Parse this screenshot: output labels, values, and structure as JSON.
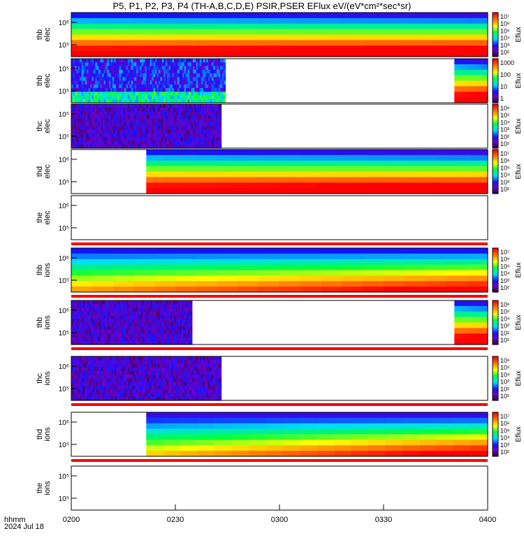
{
  "title": "P5, P1, P2, P3, P4 (TH-A,B,C,D,E) PSIR,PSER EFlux eV/(eV*cm²*sec*sr)",
  "time_label_line1": "hhmm",
  "time_label_line2": "2024 Jul 18",
  "colorbar_label": "Eflux",
  "chart_data": {
    "type": "heatmap",
    "x_range": [
      "02:00",
      "04:00"
    ],
    "x_ticks": [
      "0200",
      "0230",
      "0300",
      "0330",
      "0400"
    ],
    "y_scale": "log",
    "colormap": "rainbow (purple-blue-cyan-green-yellow-red)",
    "panels": [
      {
        "name": "thb-elec",
        "probe": "thb",
        "species": "elec",
        "y_ticks": [
          "10⁶",
          "10⁵"
        ],
        "cbar_ticks": [
          "10⁷",
          "10⁶",
          "10⁵",
          "10⁴",
          "10³",
          "10²"
        ],
        "data_extent": [
          0,
          1
        ],
        "pattern": "smooth-high",
        "status_bar": false
      },
      {
        "name": "thb-elec-2",
        "probe": "thb",
        "species": "elec",
        "y_ticks": [
          "10⁵",
          "10⁵"
        ],
        "cbar_ticks": [
          "1000",
          "100",
          "10",
          "1"
        ],
        "data_extent": [
          0,
          0.37
        ],
        "second_extent": [
          0.92,
          1
        ],
        "pattern": "noise-cyan",
        "status_bar": false
      },
      {
        "name": "thc-elec",
        "probe": "thc",
        "species": "elec",
        "y_ticks": [
          "10⁵",
          "10⁵"
        ],
        "cbar_ticks": [
          "10⁶",
          "10⁵",
          "10⁴",
          "10³",
          "10²",
          "10¹"
        ],
        "data_extent": [
          0,
          0.36
        ],
        "pattern": "noise-dark",
        "status_bar": false
      },
      {
        "name": "thd-elec",
        "probe": "thd",
        "species": "elec",
        "y_ticks": [
          "10⁶",
          "10⁵"
        ],
        "cbar_ticks": [
          "10⁷",
          "10⁶",
          "10⁵",
          "10⁴",
          "10³",
          "10²"
        ],
        "data_extent": [
          0.18,
          1
        ],
        "pattern": "smooth-high",
        "status_bar": false
      },
      {
        "name": "the-elec",
        "probe": "the",
        "species": "elec",
        "y_ticks": [
          "10⁶",
          "10⁵"
        ],
        "cbar_ticks": [],
        "data_extent": null,
        "pattern": "empty",
        "status_bar": true
      },
      {
        "name": "thb-ions",
        "probe": "thb",
        "species": "ions",
        "y_ticks": [
          "10⁶",
          "10⁵"
        ],
        "cbar_ticks": [
          "10⁷",
          "10⁶",
          "10⁵",
          "10⁴",
          "10³",
          "10²"
        ],
        "data_extent": [
          0,
          1
        ],
        "pattern": "smooth-ions",
        "status_bar": true
      },
      {
        "name": "thb-ions-2",
        "probe": "thb",
        "species": "ions",
        "y_ticks": [
          "10⁶",
          "10⁵"
        ],
        "cbar_ticks": [
          "10⁶",
          "10⁵",
          "10⁴",
          "10³",
          "10²",
          "10¹"
        ],
        "data_extent": [
          0,
          0.29
        ],
        "second_extent": [
          0.92,
          1
        ],
        "pattern": "noise-dark",
        "status_bar": true
      },
      {
        "name": "thc-ions",
        "probe": "thc",
        "species": "ions",
        "y_ticks": [
          "10⁶",
          "10⁵"
        ],
        "cbar_ticks": [
          "10⁶",
          "10⁵",
          "10⁴",
          "10³",
          "10²",
          "10¹"
        ],
        "data_extent": [
          0,
          0.36
        ],
        "pattern": "noise-dark",
        "status_bar": true
      },
      {
        "name": "thd-ions",
        "probe": "thd",
        "species": "ions",
        "y_ticks": [
          "10⁶",
          "10⁵"
        ],
        "cbar_ticks": [
          "10⁷",
          "10⁶",
          "10⁵",
          "10⁴",
          "10³",
          "10²"
        ],
        "data_extent": [
          0.18,
          1
        ],
        "pattern": "smooth-ions2",
        "status_bar": true
      },
      {
        "name": "the-ions",
        "probe": "the",
        "species": "ions",
        "y_ticks": [
          "10⁵",
          "10⁵"
        ],
        "cbar_ticks": [],
        "data_extent": null,
        "pattern": "empty",
        "status_bar": false
      }
    ]
  }
}
